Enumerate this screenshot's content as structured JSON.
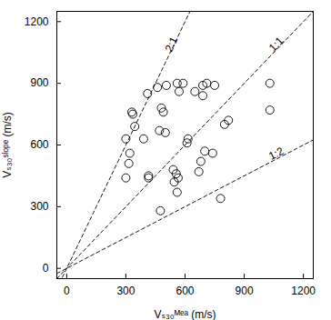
{
  "chart_data": {
    "type": "scatter",
    "x_label": "Vₛ₃₀ᴹᵉᵃ (m/s)",
    "y_label": "Vₛ₃₀ˢˡᵒᵖᵉ (m/s)",
    "x": [
      300,
      300,
      315,
      320,
      330,
      335,
      345,
      390,
      410,
      415,
      415,
      460,
      470,
      475,
      480,
      490,
      500,
      505,
      540,
      545,
      555,
      560,
      565,
      560,
      570,
      590,
      610,
      615,
      650,
      670,
      680,
      690,
      690,
      700,
      710,
      740,
      750,
      780,
      800,
      820,
      1030,
      1030
    ],
    "values": [
      440,
      630,
      510,
      560,
      760,
      750,
      690,
      630,
      850,
      440,
      450,
      880,
      670,
      280,
      780,
      760,
      660,
      890,
      480,
      420,
      460,
      370,
      440,
      900,
      860,
      900,
      610,
      630,
      860,
      470,
      520,
      890,
      840,
      570,
      900,
      560,
      890,
      340,
      700,
      720,
      900,
      770
    ],
    "marker": "circle",
    "color": "#000000",
    "reference_lines": [
      {
        "label": "2:1",
        "slope": 2
      },
      {
        "label": "1:1",
        "slope": 1
      },
      {
        "label": "1:2",
        "slope": 0.5
      }
    ],
    "xlim": [
      -50,
      1250
    ],
    "ylim": [
      -50,
      1250
    ],
    "xticks": [
      0,
      300,
      600,
      900,
      1200
    ],
    "yticks": [
      0,
      300,
      600,
      900,
      1200
    ],
    "grid": false
  }
}
